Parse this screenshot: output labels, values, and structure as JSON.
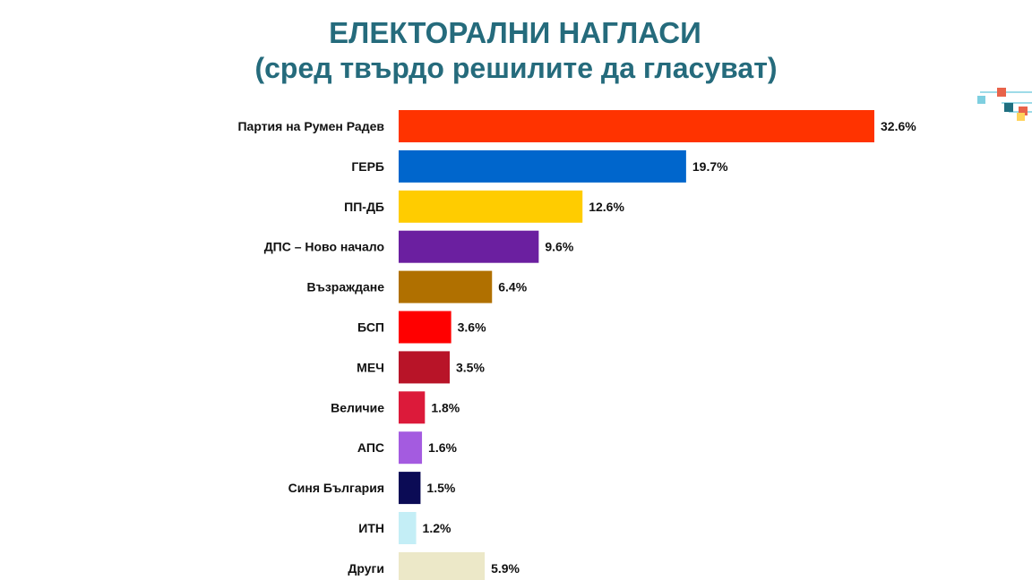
{
  "chart_data": {
    "type": "bar",
    "orientation": "horizontal",
    "title": "ЕЛЕКТОРАЛНИ НАГЛАСИ",
    "subtitle": "(сред твърдо решилите да гласуват)",
    "xlabel": "",
    "ylabel": "",
    "unit": "%",
    "grid": false,
    "legend": "none",
    "categories": [
      "Партия на Румен Радев",
      "ГЕРБ",
      "ПП-ДБ",
      "ДПС – Ново начало",
      "Възраждане",
      "БСП",
      "МЕЧ",
      "Величие",
      "АПС",
      "Синя България",
      "ИТН",
      "Други"
    ],
    "values": [
      32.6,
      19.7,
      12.6,
      9.6,
      6.4,
      3.6,
      3.5,
      1.8,
      1.6,
      1.5,
      1.2,
      5.9
    ],
    "value_labels": [
      "32.6%",
      "19.7%",
      "12.6%",
      "9.6%",
      "6.4%",
      "3.6%",
      "3.5%",
      "1.8%",
      "1.6%",
      "1.5%",
      "1.2%",
      "5.9%"
    ],
    "colors": [
      "#ff3300",
      "#0066cc",
      "#ffcc00",
      "#6b1fa0",
      "#b07000",
      "#ff0000",
      "#b81428",
      "#dc1a3a",
      "#a45be0",
      "#0b0b55",
      "#c4eef6",
      "#ece8c8"
    ],
    "xlim": [
      0,
      32.6
    ]
  },
  "theme": {
    "title_color": "#256b7c",
    "label_color": "#111111",
    "deco_colors": [
      "#e8634a",
      "#7ecfe0",
      "#1f6f80",
      "#ffd35a"
    ]
  }
}
